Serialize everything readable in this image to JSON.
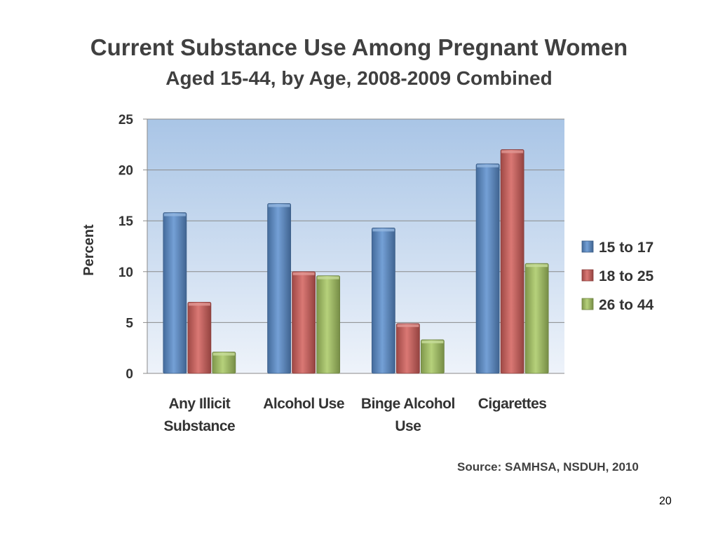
{
  "slide": {
    "title": "Current Substance Use Among Pregnant Women",
    "subtitle": "Aged 15-44, by Age, 2008-2009 Combined",
    "source": "Source: SAMHSA, NSDUH, 2010",
    "page_number": "20"
  },
  "chart_data": {
    "type": "bar",
    "categories": [
      [
        "Any Illicit",
        "Substance"
      ],
      [
        "Alcohol Use"
      ],
      [
        "Binge Alcohol",
        "Use"
      ],
      [
        "Cigarettes"
      ]
    ],
    "series": [
      {
        "name": "15 to 17",
        "values": [
          15.8,
          16.7,
          14.3,
          20.6
        ],
        "color": "#5b8fcf"
      },
      {
        "name": "18 to 25",
        "values": [
          7.0,
          10.0,
          4.9,
          22.0
        ],
        "color": "#d3605c"
      },
      {
        "name": "26 to 44",
        "values": [
          2.1,
          9.6,
          3.3,
          10.8
        ],
        "color": "#a9c964"
      }
    ],
    "ylabel": "Percent",
    "xlabel": "",
    "ylim": [
      0,
      25
    ],
    "yticks": [
      0,
      5,
      10,
      15,
      20,
      25
    ],
    "grid": true,
    "legend_position": "right",
    "plot_background": [
      "#a9c5e6",
      "#eef3fa"
    ]
  }
}
